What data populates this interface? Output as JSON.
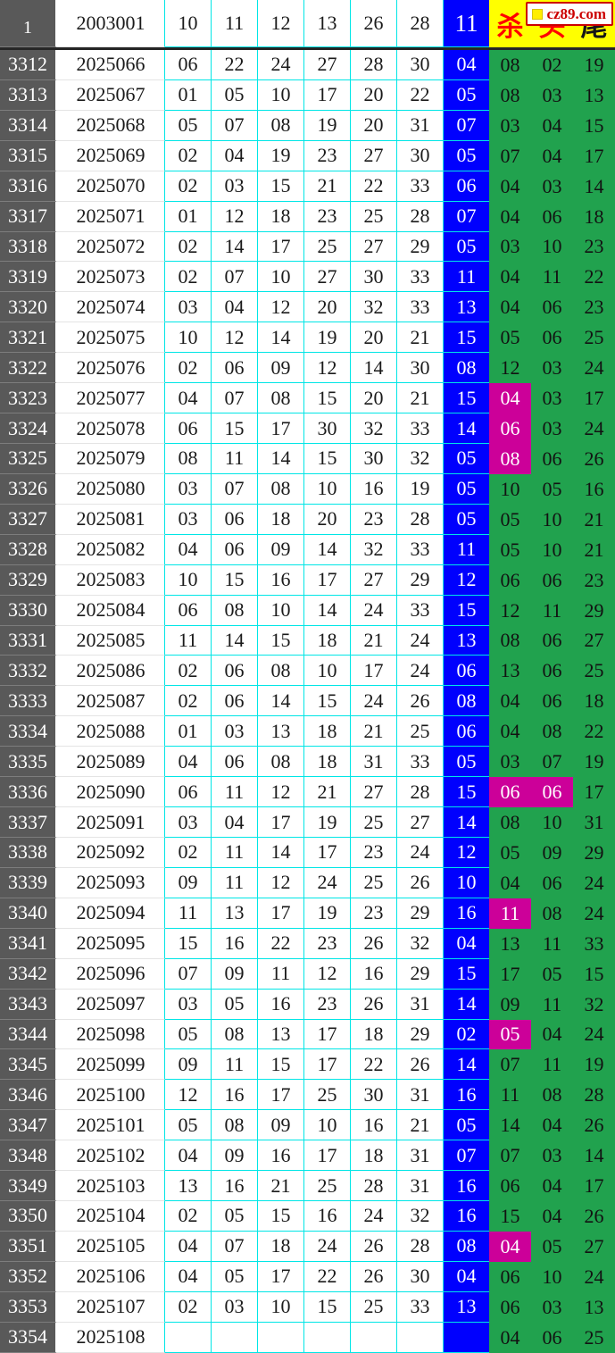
{
  "site": {
    "logo_text": "cz89.com",
    "logo_square_icon": "yellow-square-icon"
  },
  "colors": {
    "index_gray": "#595959",
    "blue_column": "#0000fe",
    "green_column": "#21a24e",
    "highlight_magenta": "#cc0099",
    "header_yellow": "#ffff00",
    "grid_cyan": "#00e6e6",
    "label_red": "#ff0000"
  },
  "header": {
    "index_label": "1",
    "base_period": "2003001",
    "nums": [
      "10",
      "11",
      "12",
      "13",
      "26",
      "28"
    ],
    "blue": "11",
    "kill_label": "杀",
    "head_label": "头",
    "tail_label": "尾"
  },
  "rows": [
    {
      "idx": "3312",
      "period": "2025066",
      "nums": [
        "06",
        "22",
        "24",
        "27",
        "28",
        "30"
      ],
      "blue": "04",
      "kill": "08",
      "head": "02",
      "tail": "19"
    },
    {
      "idx": "3313",
      "period": "2025067",
      "nums": [
        "01",
        "05",
        "10",
        "17",
        "20",
        "22"
      ],
      "blue": "05",
      "kill": "08",
      "head": "03",
      "tail": "13"
    },
    {
      "idx": "3314",
      "period": "2025068",
      "nums": [
        "05",
        "07",
        "08",
        "19",
        "20",
        "31"
      ],
      "blue": "07",
      "kill": "03",
      "head": "04",
      "tail": "15"
    },
    {
      "idx": "3315",
      "period": "2025069",
      "nums": [
        "02",
        "04",
        "19",
        "23",
        "27",
        "30"
      ],
      "blue": "05",
      "kill": "07",
      "head": "04",
      "tail": "17"
    },
    {
      "idx": "3316",
      "period": "2025070",
      "nums": [
        "02",
        "03",
        "15",
        "21",
        "22",
        "33"
      ],
      "blue": "06",
      "kill": "04",
      "head": "03",
      "tail": "14"
    },
    {
      "idx": "3317",
      "period": "2025071",
      "nums": [
        "01",
        "12",
        "18",
        "23",
        "25",
        "28"
      ],
      "blue": "07",
      "kill": "04",
      "head": "06",
      "tail": "18"
    },
    {
      "idx": "3318",
      "period": "2025072",
      "nums": [
        "02",
        "14",
        "17",
        "25",
        "27",
        "29"
      ],
      "blue": "05",
      "kill": "03",
      "head": "10",
      "tail": "23"
    },
    {
      "idx": "3319",
      "period": "2025073",
      "nums": [
        "02",
        "07",
        "10",
        "27",
        "30",
        "33"
      ],
      "blue": "11",
      "kill": "04",
      "head": "11",
      "tail": "22"
    },
    {
      "idx": "3320",
      "period": "2025074",
      "nums": [
        "03",
        "04",
        "12",
        "20",
        "32",
        "33"
      ],
      "blue": "13",
      "kill": "04",
      "head": "06",
      "tail": "23"
    },
    {
      "idx": "3321",
      "period": "2025075",
      "nums": [
        "10",
        "12",
        "14",
        "19",
        "20",
        "21"
      ],
      "blue": "15",
      "kill": "05",
      "head": "06",
      "tail": "25"
    },
    {
      "idx": "3322",
      "period": "2025076",
      "nums": [
        "02",
        "06",
        "09",
        "12",
        "14",
        "30"
      ],
      "blue": "08",
      "kill": "12",
      "head": "03",
      "tail": "24"
    },
    {
      "idx": "3323",
      "period": "2025077",
      "nums": [
        "04",
        "07",
        "08",
        "15",
        "20",
        "21"
      ],
      "blue": "15",
      "kill": "04",
      "head": "03",
      "tail": "17",
      "kill_hl": true
    },
    {
      "idx": "3324",
      "period": "2025078",
      "nums": [
        "06",
        "15",
        "17",
        "30",
        "32",
        "33"
      ],
      "blue": "14",
      "kill": "06",
      "head": "03",
      "tail": "24",
      "kill_hl": true
    },
    {
      "idx": "3325",
      "period": "2025079",
      "nums": [
        "08",
        "11",
        "14",
        "15",
        "30",
        "32"
      ],
      "blue": "05",
      "kill": "08",
      "head": "06",
      "tail": "26",
      "kill_hl": true
    },
    {
      "idx": "3326",
      "period": "2025080",
      "nums": [
        "03",
        "07",
        "08",
        "10",
        "16",
        "19"
      ],
      "blue": "05",
      "kill": "10",
      "head": "05",
      "tail": "16"
    },
    {
      "idx": "3327",
      "period": "2025081",
      "nums": [
        "03",
        "06",
        "18",
        "20",
        "23",
        "28"
      ],
      "blue": "05",
      "kill": "05",
      "head": "10",
      "tail": "21"
    },
    {
      "idx": "3328",
      "period": "2025082",
      "nums": [
        "04",
        "06",
        "09",
        "14",
        "32",
        "33"
      ],
      "blue": "11",
      "kill": "05",
      "head": "10",
      "tail": "21"
    },
    {
      "idx": "3329",
      "period": "2025083",
      "nums": [
        "10",
        "15",
        "16",
        "17",
        "27",
        "29"
      ],
      "blue": "12",
      "kill": "06",
      "head": "06",
      "tail": "23"
    },
    {
      "idx": "3330",
      "period": "2025084",
      "nums": [
        "06",
        "08",
        "10",
        "14",
        "24",
        "33"
      ],
      "blue": "15",
      "kill": "12",
      "head": "11",
      "tail": "29"
    },
    {
      "idx": "3331",
      "period": "2025085",
      "nums": [
        "11",
        "14",
        "15",
        "18",
        "21",
        "24"
      ],
      "blue": "13",
      "kill": "08",
      "head": "06",
      "tail": "27"
    },
    {
      "idx": "3332",
      "period": "2025086",
      "nums": [
        "02",
        "06",
        "08",
        "10",
        "17",
        "24"
      ],
      "blue": "06",
      "kill": "13",
      "head": "06",
      "tail": "25"
    },
    {
      "idx": "3333",
      "period": "2025087",
      "nums": [
        "02",
        "06",
        "14",
        "15",
        "24",
        "26"
      ],
      "blue": "08",
      "kill": "04",
      "head": "06",
      "tail": "18"
    },
    {
      "idx": "3334",
      "period": "2025088",
      "nums": [
        "01",
        "03",
        "13",
        "18",
        "21",
        "25"
      ],
      "blue": "06",
      "kill": "04",
      "head": "08",
      "tail": "22"
    },
    {
      "idx": "3335",
      "period": "2025089",
      "nums": [
        "04",
        "06",
        "08",
        "18",
        "31",
        "33"
      ],
      "blue": "05",
      "kill": "03",
      "head": "07",
      "tail": "19"
    },
    {
      "idx": "3336",
      "period": "2025090",
      "nums": [
        "06",
        "11",
        "12",
        "21",
        "27",
        "28"
      ],
      "blue": "15",
      "kill": "06",
      "head": "06",
      "tail": "17",
      "kill_hl": true,
      "head_hl": true
    },
    {
      "idx": "3337",
      "period": "2025091",
      "nums": [
        "03",
        "04",
        "17",
        "19",
        "25",
        "27"
      ],
      "blue": "14",
      "kill": "08",
      "head": "10",
      "tail": "31"
    },
    {
      "idx": "3338",
      "period": "2025092",
      "nums": [
        "02",
        "11",
        "14",
        "17",
        "23",
        "24"
      ],
      "blue": "12",
      "kill": "05",
      "head": "09",
      "tail": "29"
    },
    {
      "idx": "3339",
      "period": "2025093",
      "nums": [
        "09",
        "11",
        "12",
        "24",
        "25",
        "26"
      ],
      "blue": "10",
      "kill": "04",
      "head": "06",
      "tail": "24"
    },
    {
      "idx": "3340",
      "period": "2025094",
      "nums": [
        "11",
        "13",
        "17",
        "19",
        "23",
        "29"
      ],
      "blue": "16",
      "kill": "11",
      "head": "08",
      "tail": "24",
      "kill_hl": true
    },
    {
      "idx": "3341",
      "period": "2025095",
      "nums": [
        "15",
        "16",
        "22",
        "23",
        "26",
        "32"
      ],
      "blue": "04",
      "kill": "13",
      "head": "11",
      "tail": "33"
    },
    {
      "idx": "3342",
      "period": "2025096",
      "nums": [
        "07",
        "09",
        "11",
        "12",
        "16",
        "29"
      ],
      "blue": "15",
      "kill": "17",
      "head": "05",
      "tail": "15"
    },
    {
      "idx": "3343",
      "period": "2025097",
      "nums": [
        "03",
        "05",
        "16",
        "23",
        "26",
        "31"
      ],
      "blue": "14",
      "kill": "09",
      "head": "11",
      "tail": "32"
    },
    {
      "idx": "3344",
      "period": "2025098",
      "nums": [
        "05",
        "08",
        "13",
        "17",
        "18",
        "29"
      ],
      "blue": "02",
      "kill": "05",
      "head": "04",
      "tail": "24",
      "kill_hl": true
    },
    {
      "idx": "3345",
      "period": "2025099",
      "nums": [
        "09",
        "11",
        "15",
        "17",
        "22",
        "26"
      ],
      "blue": "14",
      "kill": "07",
      "head": "11",
      "tail": "19"
    },
    {
      "idx": "3346",
      "period": "2025100",
      "nums": [
        "12",
        "16",
        "17",
        "25",
        "30",
        "31"
      ],
      "blue": "16",
      "kill": "11",
      "head": "08",
      "tail": "28"
    },
    {
      "idx": "3347",
      "period": "2025101",
      "nums": [
        "05",
        "08",
        "09",
        "10",
        "16",
        "21"
      ],
      "blue": "05",
      "kill": "14",
      "head": "04",
      "tail": "26"
    },
    {
      "idx": "3348",
      "period": "2025102",
      "nums": [
        "04",
        "09",
        "16",
        "17",
        "18",
        "31"
      ],
      "blue": "07",
      "kill": "07",
      "head": "03",
      "tail": "14"
    },
    {
      "idx": "3349",
      "period": "2025103",
      "nums": [
        "13",
        "16",
        "21",
        "25",
        "28",
        "31"
      ],
      "blue": "16",
      "kill": "06",
      "head": "04",
      "tail": "17"
    },
    {
      "idx": "3350",
      "period": "2025104",
      "nums": [
        "02",
        "05",
        "15",
        "16",
        "24",
        "32"
      ],
      "blue": "16",
      "kill": "15",
      "head": "04",
      "tail": "26"
    },
    {
      "idx": "3351",
      "period": "2025105",
      "nums": [
        "04",
        "07",
        "18",
        "24",
        "26",
        "28"
      ],
      "blue": "08",
      "kill": "04",
      "head": "05",
      "tail": "27",
      "kill_hl": true
    },
    {
      "idx": "3352",
      "period": "2025106",
      "nums": [
        "04",
        "05",
        "17",
        "22",
        "26",
        "30"
      ],
      "blue": "04",
      "kill": "06",
      "head": "10",
      "tail": "24"
    },
    {
      "idx": "3353",
      "period": "2025107",
      "nums": [
        "02",
        "03",
        "10",
        "15",
        "25",
        "33"
      ],
      "blue": "13",
      "kill": "06",
      "head": "03",
      "tail": "13"
    },
    {
      "idx": "3354",
      "period": "2025108",
      "nums": [
        "",
        "",
        "",
        "",
        "",
        ""
      ],
      "blue": "",
      "kill": "04",
      "head": "06",
      "tail": "25"
    }
  ]
}
